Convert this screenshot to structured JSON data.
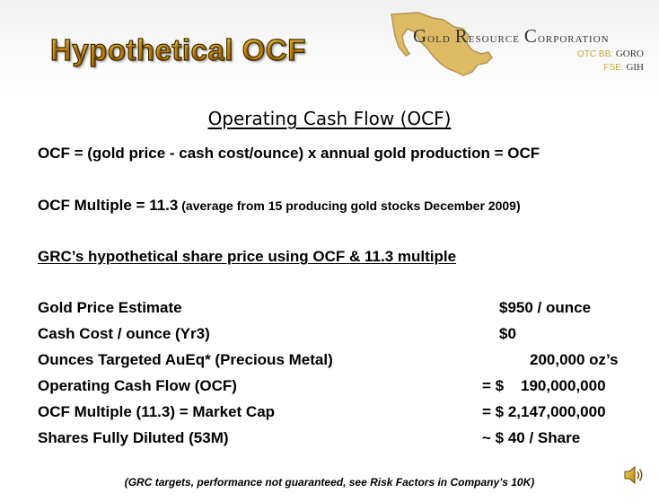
{
  "header": {
    "title": "Hypothetical OCF",
    "logo": {
      "company_name_parts": [
        "G",
        "old ",
        "R",
        "esource ",
        "C",
        "orporation"
      ],
      "otc_exchange": "OTC BB:",
      "otc_symbol": "GORO",
      "fse_exchange": "FSE:",
      "fse_symbol": "GIH",
      "icon": "mexico-map-icon",
      "colors": {
        "map_gold": "#d9b04a",
        "map_dark": "#a8852e"
      }
    }
  },
  "body": {
    "heading": "Operating Cash Flow (OCF)",
    "formula": "OCF =  (gold price - cash cost/ounce) x annual gold production = OCF",
    "multiple_main": "OCF Multiple = 11.3",
    "multiple_note": " (average from 15 producing gold stocks December 2009)",
    "subheading": "GRC’s hypothetical share price using OCF & 11.3 multiple",
    "rows": [
      {
        "label": "Gold Price Estimate",
        "value": "$950 / ounce"
      },
      {
        "label": "Cash Cost / ounce (Yr3)",
        "value": "$0"
      },
      {
        "label": "Ounces Targeted AuEq* (Precious Metal)",
        "value": "200,000 oz’s"
      },
      {
        "label": "Operating Cash Flow (OCF)",
        "value": "= $    190,000,000"
      },
      {
        "label": "OCF Multiple (11.3) = Market Cap",
        "value": "= $ 2,147,000,000"
      },
      {
        "label": "Shares Fully Diluted  (53M)",
        "value": "~ $ 40 / Share"
      }
    ],
    "footnote": "(GRC targets, performance not guaranteed, see Risk Factors in Company’s 10K)"
  },
  "media": {
    "icon": "speaker-icon"
  },
  "colors": {
    "title_gold": "#e8a317",
    "logo_gold": "#c8a63c",
    "text": "#000000"
  }
}
